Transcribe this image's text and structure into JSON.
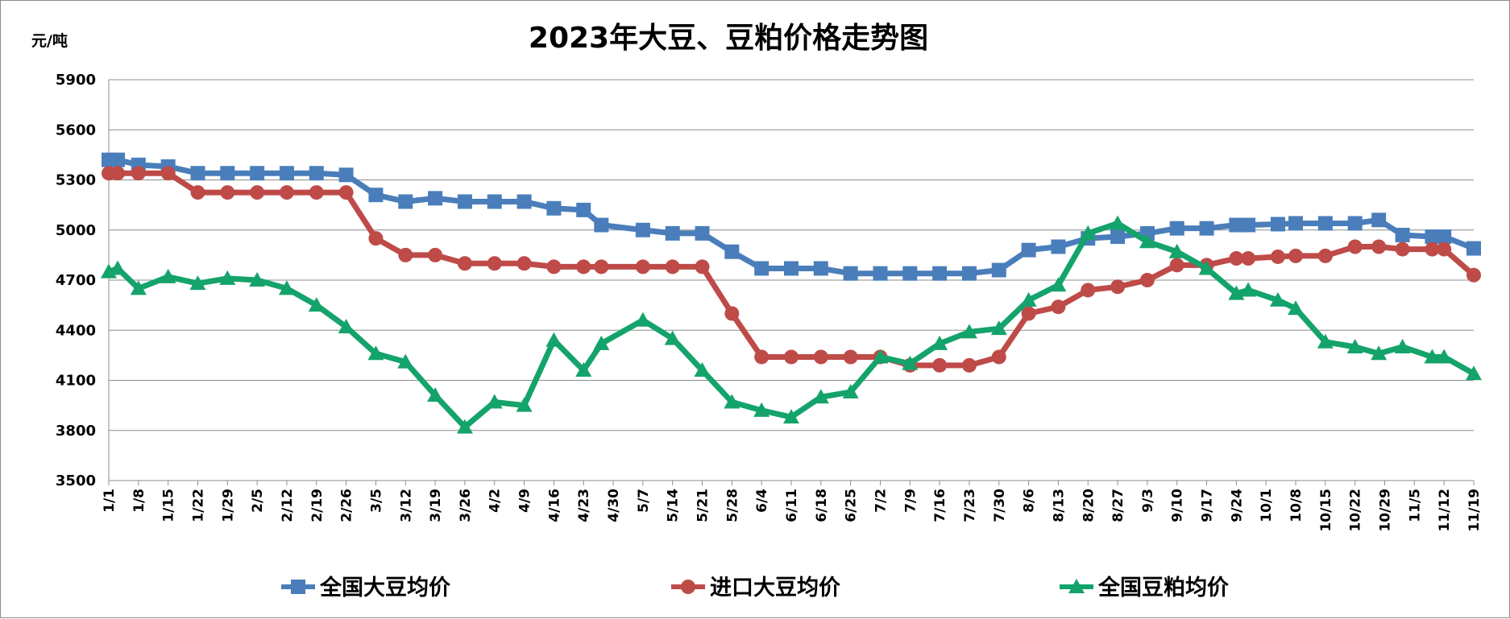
{
  "chart_data": {
    "type": "line",
    "title": "2023年大豆、豆粕价格走势图",
    "yunit": "元/吨",
    "ylim": [
      3500,
      5900
    ],
    "yticks": [
      3500,
      3800,
      4100,
      4400,
      4700,
      5000,
      5300,
      5600,
      5900
    ],
    "grid": true,
    "legend_position": "bottom",
    "x_tick_labels": [
      "1/1",
      "1/8",
      "1/15",
      "1/22",
      "1/29",
      "2/5",
      "2/12",
      "2/19",
      "2/26",
      "3/5",
      "3/12",
      "3/19",
      "3/26",
      "4/2",
      "4/9",
      "4/16",
      "4/23",
      "4/30",
      "5/7",
      "5/14",
      "5/21",
      "5/28",
      "6/4",
      "6/11",
      "6/18",
      "6/25",
      "7/2",
      "7/9",
      "7/16",
      "7/23",
      "7/30",
      "8/6",
      "8/13",
      "8/20",
      "8/27",
      "9/3",
      "9/10",
      "9/17",
      "9/24",
      "10/1",
      "10/8",
      "10/15",
      "10/22",
      "10/29",
      "11/5",
      "11/12",
      "11/19"
    ],
    "x_range": [
      0,
      46
    ],
    "series": [
      {
        "name": "全国大豆均价",
        "color": "#4a7ebb",
        "marker": "square",
        "x": [
          0,
          0.3,
          1,
          2,
          3,
          4,
          5,
          6,
          7,
          8,
          9,
          10,
          11,
          12,
          13,
          14,
          15,
          16,
          16.6,
          18,
          19,
          20,
          21,
          22,
          23,
          24,
          25,
          26,
          27,
          28,
          29,
          30,
          31,
          32,
          33,
          34,
          35,
          36,
          37,
          38,
          38.4,
          39.4,
          40,
          41,
          42,
          42.8,
          43.6,
          44.6,
          45,
          46
        ],
        "values": [
          5420,
          5420,
          5390,
          5380,
          5340,
          5340,
          5340,
          5340,
          5340,
          5330,
          5210,
          5170,
          5190,
          5170,
          5170,
          5170,
          5130,
          5120,
          5030,
          5000,
          4980,
          4980,
          4870,
          4770,
          4770,
          4770,
          4740,
          4740,
          4740,
          4740,
          4740,
          4760,
          4880,
          4900,
          4950,
          4960,
          4980,
          5010,
          5010,
          5030,
          5030,
          5035,
          5040,
          5040,
          5040,
          5060,
          4970,
          4960,
          4960,
          4890
        ]
      },
      {
        "name": "进口大豆均价",
        "color": "#be4b48",
        "marker": "circle",
        "x": [
          0,
          0.3,
          1,
          2,
          3,
          4,
          5,
          6,
          7,
          8,
          9,
          10,
          11,
          12,
          13,
          14,
          15,
          16,
          16.6,
          18,
          19,
          20,
          21,
          22,
          23,
          24,
          25,
          26,
          27,
          28,
          29,
          30,
          31,
          32,
          33,
          34,
          35,
          36,
          37,
          38,
          38.4,
          39.4,
          40,
          41,
          42,
          42.8,
          43.6,
          44.6,
          45,
          46
        ],
        "values": [
          5340,
          5340,
          5340,
          5340,
          5225,
          5225,
          5225,
          5225,
          5225,
          5225,
          4950,
          4850,
          4850,
          4800,
          4800,
          4800,
          4780,
          4780,
          4780,
          4780,
          4780,
          4780,
          4500,
          4240,
          4240,
          4240,
          4240,
          4240,
          4190,
          4190,
          4190,
          4240,
          4500,
          4540,
          4640,
          4660,
          4700,
          4790,
          4790,
          4830,
          4830,
          4840,
          4845,
          4845,
          4900,
          4900,
          4885,
          4885,
          4885,
          4730
        ]
      },
      {
        "name": "全国豆粕均价",
        "color": "#14a36b",
        "marker": "triangle",
        "x": [
          0,
          0.3,
          1,
          2,
          3,
          4,
          5,
          6,
          7,
          8,
          9,
          10,
          11,
          12,
          13,
          14,
          15,
          16,
          16.6,
          18,
          19,
          20,
          21,
          22,
          23,
          24,
          25,
          26,
          27,
          28,
          29,
          30,
          31,
          32,
          33,
          34,
          35,
          36,
          37,
          38,
          38.4,
          39.4,
          40,
          41,
          42,
          42.8,
          43.6,
          44.6,
          45,
          46
        ],
        "values": [
          4750,
          4770,
          4650,
          4720,
          4680,
          4710,
          4700,
          4650,
          4550,
          4420,
          4260,
          4210,
          4010,
          3820,
          3970,
          3950,
          4340,
          4160,
          4320,
          4460,
          4350,
          4160,
          3970,
          3920,
          3880,
          4000,
          4030,
          4240,
          4200,
          4320,
          4390,
          4410,
          4580,
          4670,
          4980,
          5040,
          4930,
          4870,
          4770,
          4620,
          4640,
          4580,
          4530,
          4330,
          4300,
          4260,
          4300,
          4240,
          4240,
          4140
        ]
      }
    ]
  }
}
